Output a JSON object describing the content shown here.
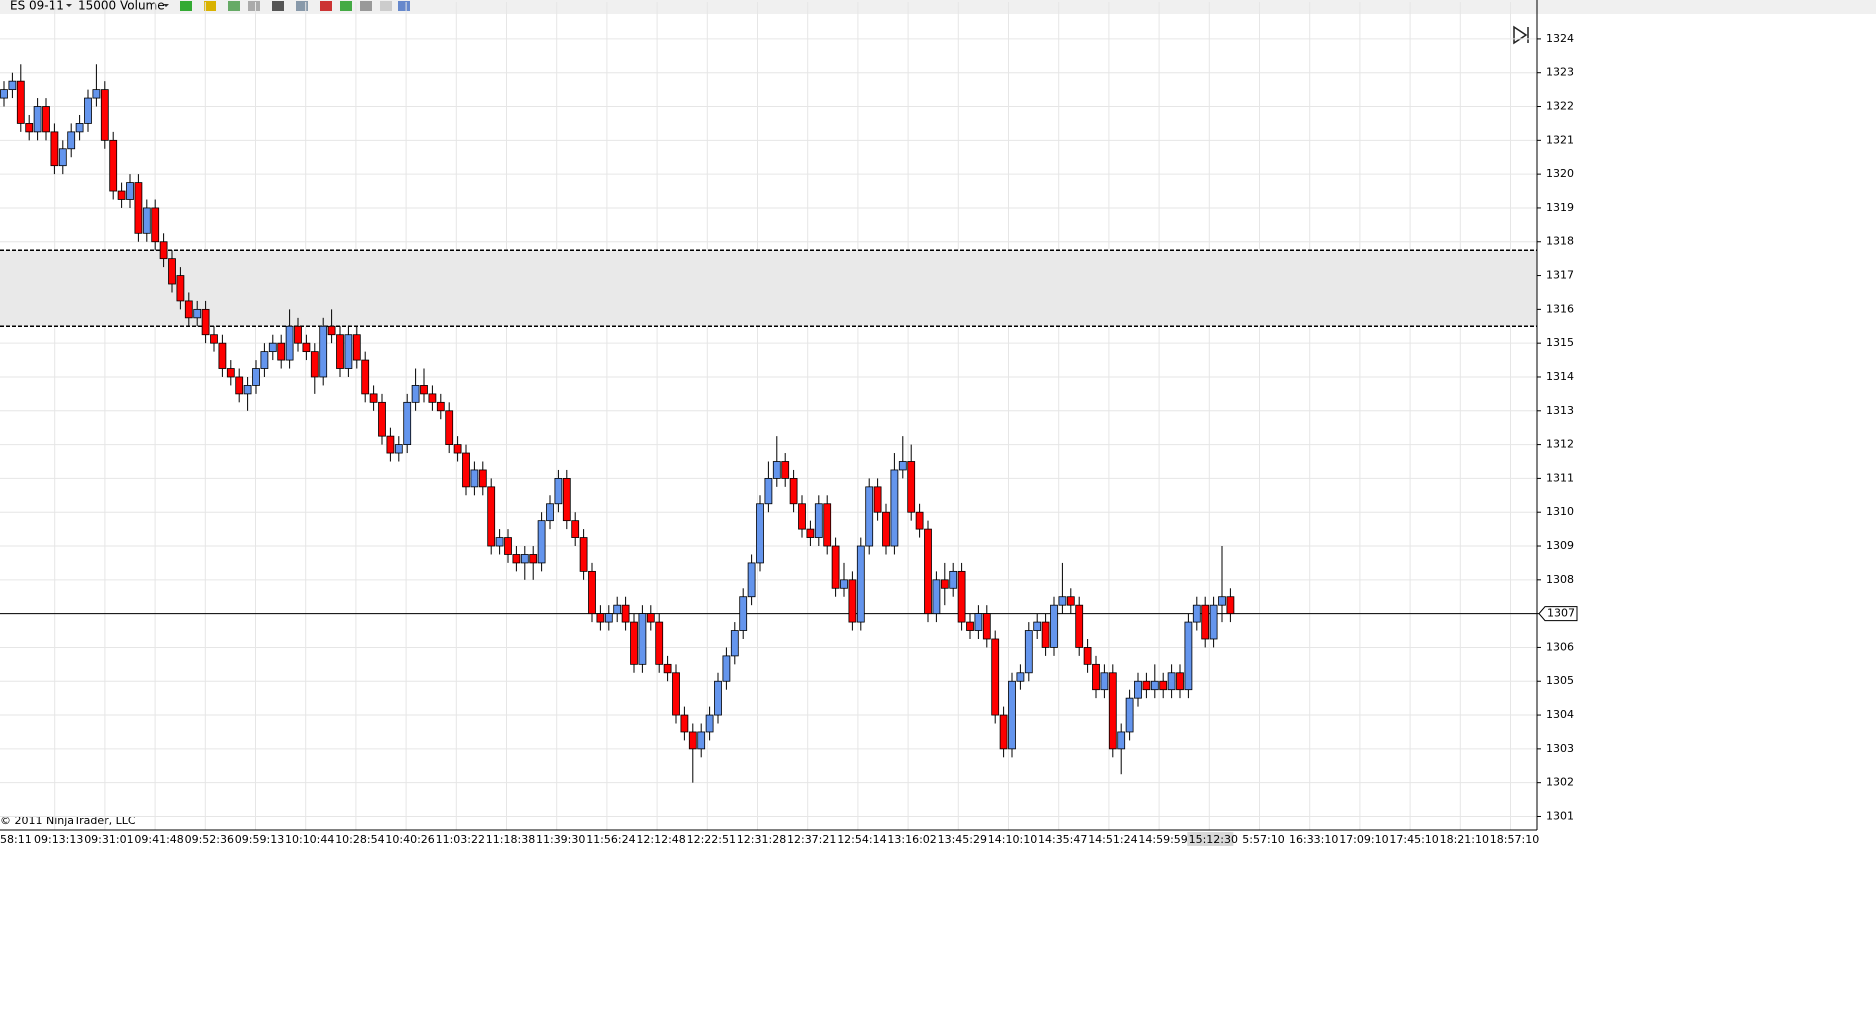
{
  "toolbar": {
    "instrument": "ES 09-11",
    "period": "15000 Volume"
  },
  "footer": "© 2011 NinjaTrader, LLC",
  "chart_data": {
    "type": "candlestick",
    "open": [
      1322.25,
      1322.5,
      1322.75,
      1321.5,
      1321.25,
      1322,
      1321.25,
      1320.25,
      1320.75,
      1321.25,
      1321.5,
      1322.25,
      1322.5,
      1321,
      1319.5,
      1319.25,
      1319.75,
      1318.25,
      1319,
      1318,
      1317.5,
      1317,
      1316.25,
      1315.75,
      1316,
      1315.25,
      1315,
      1314.25,
      1314,
      1313.5,
      1313.75,
      1314.25,
      1314.75,
      1315,
      1314.5,
      1315.5,
      1315,
      1314.75,
      1314,
      1315.5,
      1315.25,
      1314.25,
      1315.25,
      1314.5,
      1313.5,
      1313.25,
      1312.25,
      1311.75,
      1312,
      1313.25,
      1313.75,
      1313.5,
      1313.25,
      1313,
      1312,
      1311.75,
      1310.75,
      1311.25,
      1310.75,
      1309,
      1309.25,
      1308.75,
      1308.5,
      1308.75,
      1308.5,
      1309.75,
      1310.25,
      1311,
      1309.75,
      1309.25,
      1308.25,
      1307,
      1306.75,
      1307,
      1307.25,
      1306.75,
      1305.5,
      1307,
      1306.75,
      1305.5,
      1305.25,
      1304,
      1303.5,
      1303,
      1303.5,
      1304,
      1305,
      1305.75,
      1306.5,
      1307.5,
      1308.5,
      1310.25,
      1311,
      1311.5,
      1311,
      1310.25,
      1309.5,
      1309.25,
      1310.25,
      1309,
      1307.75,
      1308,
      1306.75,
      1309,
      1310.75,
      1310,
      1309,
      1311.25,
      1311.5,
      1310,
      1309.5,
      1307,
      1308,
      1307.75,
      1308.25,
      1306.75,
      1306.5,
      1307,
      1306.25,
      1304,
      1303,
      1305,
      1305.25,
      1306.5,
      1306.75,
      1306,
      1307.25,
      1307.5,
      1307.25,
      1306,
      1305.5,
      1304.75,
      1305.25,
      1303,
      1303.5,
      1304.5,
      1305,
      1304.75,
      1305,
      1304.75,
      1305.25,
      1304.75,
      1306.75,
      1307.25,
      1306.25,
      1307.25,
      1307.5
    ],
    "high": [
      1322.75,
      1323,
      1323.25,
      1321.75,
      1322.25,
      1322.25,
      1321.5,
      1321,
      1321.5,
      1321.75,
      1322.5,
      1323.25,
      1322.75,
      1321.25,
      1319.75,
      1320,
      1320,
      1319.25,
      1319.25,
      1318.25,
      1317.75,
      1317.25,
      1316.5,
      1316.25,
      1316.25,
      1315.5,
      1315.25,
      1314.5,
      1314.25,
      1314,
      1314.5,
      1315,
      1315.25,
      1315.25,
      1316,
      1315.75,
      1315.25,
      1315,
      1315.75,
      1316,
      1315.5,
      1315.5,
      1315.5,
      1314.75,
      1313.75,
      1313.5,
      1312.5,
      1312.25,
      1313.5,
      1314.25,
      1314.25,
      1313.75,
      1313.5,
      1313.25,
      1312.25,
      1312,
      1311.5,
      1311.5,
      1311,
      1309.5,
      1309.5,
      1309,
      1309,
      1309,
      1310,
      1310.5,
      1311.25,
      1311.25,
      1310,
      1309.5,
      1308.5,
      1307.25,
      1307.25,
      1307.5,
      1307.5,
      1307,
      1307.25,
      1307.25,
      1307,
      1305.75,
      1305.5,
      1304.25,
      1303.75,
      1303.75,
      1304.25,
      1305.25,
      1306,
      1306.75,
      1307.75,
      1308.75,
      1310.5,
      1311.5,
      1312.25,
      1311.75,
      1311.25,
      1310.5,
      1309.75,
      1310.5,
      1310.5,
      1309.25,
      1308.5,
      1308.25,
      1309.25,
      1311,
      1311,
      1310.25,
      1311.75,
      1312.25,
      1312,
      1310.25,
      1309.75,
      1308.25,
      1308.5,
      1308.5,
      1308.5,
      1307,
      1307.25,
      1307.25,
      1306.5,
      1304.25,
      1305.25,
      1305.5,
      1306.75,
      1307,
      1307,
      1307.5,
      1308.5,
      1307.75,
      1307.5,
      1306.25,
      1305.75,
      1305.5,
      1305.5,
      1303.75,
      1304.75,
      1305.25,
      1305.25,
      1305.5,
      1305.25,
      1305.5,
      1305.5,
      1307,
      1307.5,
      1307.5,
      1307.5,
      1309,
      1307.75
    ],
    "low": [
      1322,
      1322.25,
      1321.25,
      1321,
      1321,
      1321,
      1320,
      1320,
      1320.5,
      1321,
      1321.25,
      1322,
      1320.75,
      1319.25,
      1319,
      1319,
      1318,
      1318,
      1317.75,
      1317.25,
      1316.5,
      1316,
      1315.5,
      1315.5,
      1315,
      1314.75,
      1314,
      1313.75,
      1313.25,
      1313,
      1313.5,
      1314,
      1314.5,
      1314.25,
      1314.25,
      1314.75,
      1314.5,
      1313.5,
      1313.75,
      1315,
      1314,
      1314,
      1314.25,
      1313.25,
      1313,
      1312,
      1311.5,
      1311.5,
      1311.75,
      1313,
      1313.25,
      1313,
      1312.75,
      1311.75,
      1311.5,
      1310.5,
      1310.5,
      1310.5,
      1308.75,
      1308.75,
      1308.5,
      1308.25,
      1308,
      1308,
      1308.25,
      1309.5,
      1310,
      1309.5,
      1309,
      1308,
      1306.75,
      1306.5,
      1306.5,
      1306.75,
      1306.5,
      1305.25,
      1305.25,
      1306.5,
      1305.25,
      1305,
      1303.75,
      1303.25,
      1302,
      1302.75,
      1303.25,
      1303.75,
      1304.75,
      1305.5,
      1306.25,
      1307.25,
      1308.25,
      1310,
      1310.75,
      1310.75,
      1310,
      1309.25,
      1309,
      1309,
      1308.75,
      1307.5,
      1307.5,
      1306.5,
      1306.5,
      1308.75,
      1309.75,
      1308.75,
      1308.75,
      1311,
      1309.75,
      1309.25,
      1306.75,
      1306.75,
      1307.25,
      1307.5,
      1306.5,
      1306.25,
      1306.25,
      1306,
      1303.75,
      1302.75,
      1302.75,
      1304.75,
      1305,
      1306.25,
      1305.75,
      1305.75,
      1307,
      1307,
      1305.75,
      1305.25,
      1304.5,
      1304.5,
      1302.75,
      1302.25,
      1303.25,
      1304.25,
      1304.5,
      1304.5,
      1304.5,
      1304.5,
      1304.5,
      1304.5,
      1306.5,
      1306,
      1306,
      1306.75,
      1306.75
    ],
    "close": [
      1322.5,
      1322.75,
      1321.5,
      1321.25,
      1322,
      1321.25,
      1320.25,
      1320.75,
      1321.25,
      1321.5,
      1322.25,
      1322.5,
      1321,
      1319.5,
      1319.25,
      1319.75,
      1318.25,
      1319,
      1318,
      1317.5,
      1316.75,
      1316.25,
      1315.75,
      1316,
      1315.25,
      1315,
      1314.25,
      1314,
      1313.5,
      1313.75,
      1314.25,
      1314.75,
      1315,
      1314.5,
      1315.5,
      1315,
      1314.75,
      1314,
      1315.5,
      1315.25,
      1314.25,
      1315.25,
      1314.5,
      1313.5,
      1313.25,
      1312.25,
      1311.75,
      1312,
      1313.25,
      1313.75,
      1313.5,
      1313.25,
      1313,
      1312,
      1311.75,
      1310.75,
      1311.25,
      1310.75,
      1309,
      1309.25,
      1308.75,
      1308.5,
      1308.75,
      1308.5,
      1309.75,
      1310.25,
      1311,
      1309.75,
      1309.25,
      1308.25,
      1307,
      1306.75,
      1307,
      1307.25,
      1306.75,
      1305.5,
      1307,
      1306.75,
      1305.5,
      1305.25,
      1304,
      1303.5,
      1303,
      1303.5,
      1304,
      1305,
      1305.75,
      1306.5,
      1307.5,
      1308.5,
      1310.25,
      1311,
      1311.5,
      1311,
      1310.25,
      1309.5,
      1309.25,
      1310.25,
      1309,
      1307.75,
      1308,
      1306.75,
      1309,
      1310.75,
      1310,
      1309,
      1311.25,
      1311.5,
      1310,
      1309.5,
      1307,
      1308,
      1307.75,
      1308.25,
      1306.75,
      1306.5,
      1307,
      1306.25,
      1304,
      1303,
      1305,
      1305.25,
      1306.5,
      1306.75,
      1306,
      1307.25,
      1307.5,
      1307.25,
      1306,
      1305.5,
      1304.75,
      1305.25,
      1303,
      1303.5,
      1304.5,
      1305,
      1304.75,
      1305,
      1304.75,
      1305.25,
      1304.75,
      1306.75,
      1307.25,
      1306.25,
      1307.25,
      1307.5,
      1307
    ],
    "up_color": "#6495ed",
    "down_color": "#ff0000",
    "ylim": [
      1300.6,
      1324.5
    ],
    "yticks": [
      1301,
      1302,
      1303,
      1304,
      1305,
      1306,
      1307,
      1308,
      1309,
      1310,
      1311,
      1312,
      1313,
      1314,
      1315,
      1316,
      1317,
      1318,
      1319,
      1320,
      1321,
      1322,
      1323,
      1324
    ],
    "time_labels": [
      "58:11",
      "09:13:13",
      "09:31:01",
      "09:41:48",
      "09:52:36",
      "09:59:13",
      "10:10:44",
      "10:28:54",
      "10:40:26",
      "11:03:22",
      "11:18:38",
      "11:39:30",
      "11:56:24",
      "12:12:48",
      "12:22:51",
      "12:31:28",
      "12:37:21",
      "12:54:14",
      "13:16:02",
      "13:45:29",
      "14:10:10",
      "14:35:47",
      "14:51:24",
      "14:59:59",
      "15:12:30",
      "5:57:10",
      "16:33:10",
      "17:09:10",
      "17:45:10",
      "18:21:10",
      "18:57:10"
    ],
    "highlighted_time": 24,
    "zone": [
      1315.5,
      1317.75
    ],
    "last_price": 1307,
    "grid": true
  }
}
